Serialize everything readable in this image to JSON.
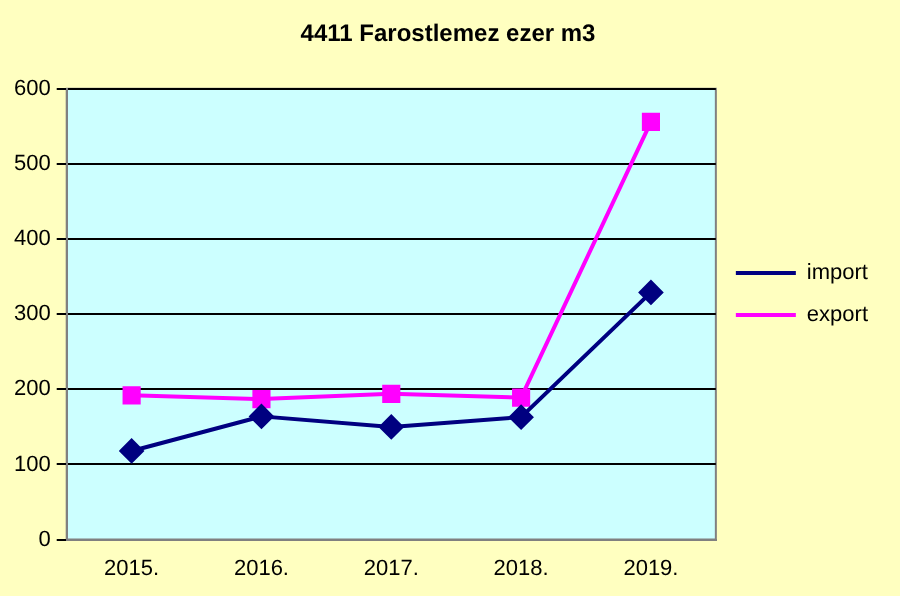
{
  "chart_data": {
    "type": "line",
    "title": "4411 Farostlemez ezer m3",
    "categories": [
      "2015.",
      "2016.",
      "2017.",
      "2018.",
      "2019."
    ],
    "series": [
      {
        "name": "import",
        "color": "#000080",
        "marker": "diamond",
        "values": [
          118,
          164,
          150,
          163,
          329
        ]
      },
      {
        "name": "export",
        "color": "#ff00ff",
        "marker": "square",
        "values": [
          192,
          187,
          194,
          189,
          556
        ]
      }
    ],
    "ylim": [
      0,
      600
    ],
    "yticks": [
      0,
      100,
      200,
      300,
      400,
      500,
      600
    ],
    "grid": "y",
    "legend": "right",
    "line_style": "solid"
  }
}
